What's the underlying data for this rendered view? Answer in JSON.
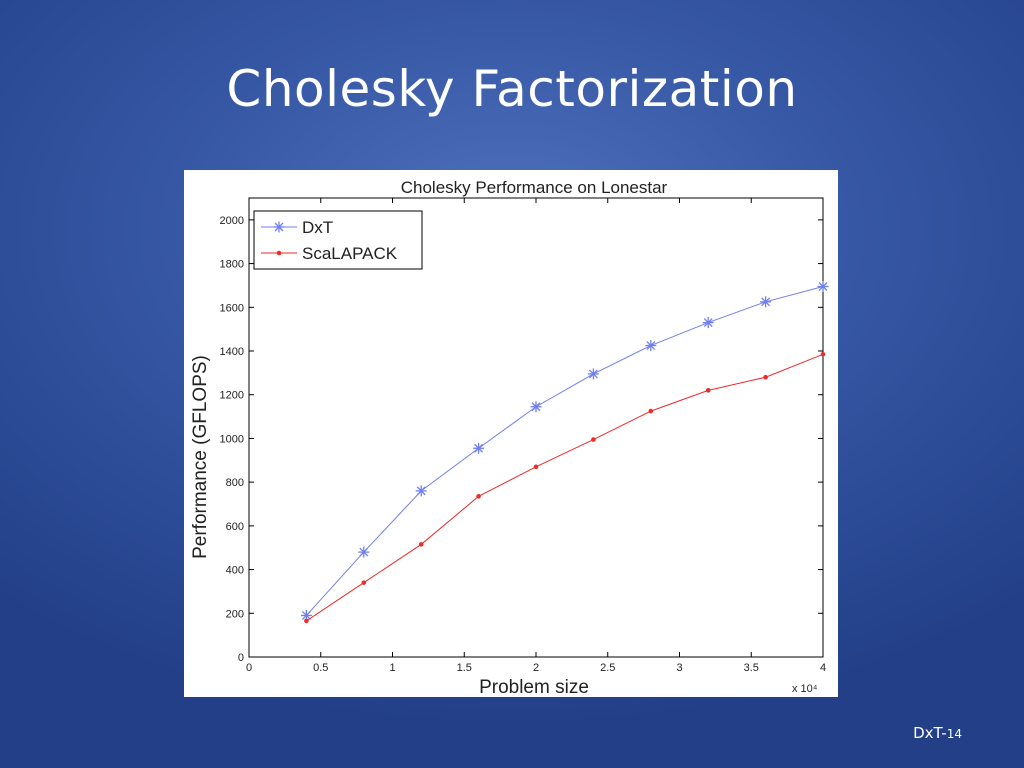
{
  "slide": {
    "title": "Cholesky Factorization",
    "footer_label": "DxT-",
    "footer_page": "14"
  },
  "chart_data": {
    "type": "line",
    "title": "Cholesky Performance on Lonestar",
    "xlabel": "Problem size",
    "ylabel": "Performance (GFLOPS)",
    "x_multiplier": "x 10⁴",
    "xlim": [
      0,
      4
    ],
    "ylim": [
      0,
      2100
    ],
    "xticks": [
      0,
      0.5,
      1,
      1.5,
      2,
      2.5,
      3,
      3.5,
      4
    ],
    "xtick_labels": [
      "0",
      "0.5",
      "1",
      "1.5",
      "2",
      "2.5",
      "3",
      "3.5",
      "4"
    ],
    "yticks": [
      0,
      200,
      400,
      600,
      800,
      1000,
      1200,
      1400,
      1600,
      1800,
      2000
    ],
    "grid": false,
    "legend_position": "top-left",
    "x": [
      0.4,
      0.8,
      1.2,
      1.6,
      2.0,
      2.4,
      2.8,
      3.2,
      3.6,
      4.0
    ],
    "series": [
      {
        "name": "DxT",
        "color": "#6f7ff0",
        "marker": "asterisk",
        "values": [
          190,
          480,
          760,
          955,
          1145,
          1295,
          1425,
          1530,
          1625,
          1695
        ]
      },
      {
        "name": "ScaLAPACK",
        "color": "#ee2a2a",
        "marker": "dot",
        "values": [
          165,
          340,
          515,
          735,
          870,
          995,
          1125,
          1220,
          1280,
          1385
        ]
      }
    ]
  }
}
